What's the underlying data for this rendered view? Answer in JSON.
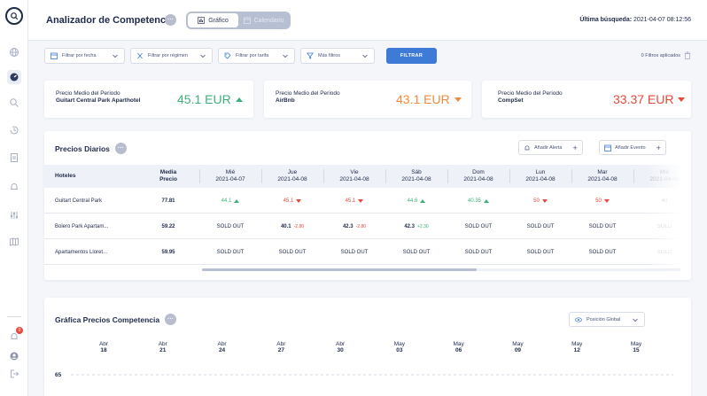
{
  "sidebar": {
    "items": [
      {
        "icon": "globe-icon"
      },
      {
        "icon": "dashboard-gauge-icon",
        "active": true
      },
      {
        "icon": "search-icon"
      },
      {
        "icon": "history-icon"
      },
      {
        "icon": "document-icon"
      },
      {
        "icon": "bell-icon"
      },
      {
        "icon": "sliders-icon"
      },
      {
        "icon": "map-icon"
      }
    ],
    "bottom": [
      {
        "icon": "notification-icon",
        "badge": "0"
      },
      {
        "icon": "user-icon"
      },
      {
        "icon": "logout-icon"
      }
    ]
  },
  "header": {
    "title": "Analizador de Competencia",
    "view_graph": "Gráfico",
    "view_calendar": "Calendario",
    "last_search_label": "Última búsqueda:",
    "last_search_value": "2021-04-07 08:12:56"
  },
  "filters": {
    "date": "Filtrar por fecha",
    "regime": "Filtrar por régimen",
    "rate": "Filtrar por tarifa",
    "more": "Más filtros",
    "apply": "FILTRAR",
    "applied": "0 Filtros aplicados"
  },
  "cards": [
    {
      "label": "Precio Medio del Periodo",
      "sub": "Guitart Central Park Aparthotel",
      "value": "45.1 EUR",
      "trend": "up",
      "color": "#3bb27a"
    },
    {
      "label": "Precio Medio del Periodo",
      "sub": "AirBnb",
      "value": "43.1 EUR",
      "trend": "down",
      "color": "#f08a3c"
    },
    {
      "label": "Precio Medio del Periodo",
      "sub": "CompSet",
      "value": "33.37 EUR",
      "trend": "down",
      "color": "#e64a3b"
    }
  ],
  "daily": {
    "title": "Precios Diarios",
    "add_alert": "Añadir Alerta",
    "add_event": "Añadir Evento",
    "col_hotels": "Hoteles",
    "col_avg_1": "Media",
    "col_avg_2": "Precio",
    "days": [
      {
        "day": "Mié",
        "date": "2021-04-07"
      },
      {
        "day": "Jue",
        "date": "2021-04-08"
      },
      {
        "day": "Vie",
        "date": "2021-04-08"
      },
      {
        "day": "Sáb",
        "date": "2021-04-08"
      },
      {
        "day": "Dom",
        "date": "2021-04-08"
      },
      {
        "day": "Lun",
        "date": "2021-04-08"
      },
      {
        "day": "Mar",
        "date": "2021-04-08"
      },
      {
        "day": "Mié",
        "date": "2021-04-08"
      }
    ],
    "rows": [
      {
        "name": "Guitart Central Park",
        "avg": "77.81",
        "cells": [
          {
            "v": "44.1",
            "t": "up",
            "c": "#3bb27a"
          },
          {
            "v": "45.1",
            "t": "down",
            "c": "#e64a3b"
          },
          {
            "v": "45.1",
            "t": "down",
            "c": "#e64a3b"
          },
          {
            "v": "44.6",
            "t": "up",
            "c": "#3bb27a"
          },
          {
            "v": "40.35",
            "t": "up",
            "c": "#3bb27a"
          },
          {
            "v": "50",
            "t": "down",
            "c": "#e64a3b"
          },
          {
            "v": "50",
            "t": "down",
            "c": "#e64a3b"
          },
          {
            "v": "40",
            "t": "",
            "c": "#1e2a4a"
          }
        ]
      },
      {
        "name": "Bolero Park Apartam...",
        "avg": "59.22",
        "cells": [
          {
            "v": "SOLD OUT"
          },
          {
            "v": "40.1",
            "d": "-2.80",
            "dc": "#e64a3b"
          },
          {
            "v": "42.3",
            "d": "-2.80",
            "dc": "#e64a3b"
          },
          {
            "v": "42.3",
            "d": "+2.30",
            "dc": "#3bb27a"
          },
          {
            "v": "SOLD OUT"
          },
          {
            "v": "SOLD OUT"
          },
          {
            "v": "SOLD OUT"
          },
          {
            "v": "SOLD"
          }
        ]
      },
      {
        "name": "Apartamentos Lloret...",
        "avg": "59.95",
        "cells": [
          {
            "v": "SOLD OUT"
          },
          {
            "v": "SOLD OUT"
          },
          {
            "v": "SOLD OUT"
          },
          {
            "v": "SOLD OUT"
          },
          {
            "v": "SOLD OUT"
          },
          {
            "v": "SOLD OUT"
          },
          {
            "v": "SOLD OUT"
          },
          {
            "v": "SOLD"
          }
        ]
      }
    ]
  },
  "chart": {
    "title": "Gráfica Precios Competencia",
    "select_label": "Posición Global"
  },
  "chart_data": {
    "type": "line",
    "title": "Gráfica Precios Competencia",
    "x_ticks": [
      {
        "month": "Abr",
        "day": "18"
      },
      {
        "month": "Abr",
        "day": "21"
      },
      {
        "month": "Abr",
        "day": "24"
      },
      {
        "month": "Abr",
        "day": "27"
      },
      {
        "month": "Abr",
        "day": "30"
      },
      {
        "month": "May",
        "day": "03"
      },
      {
        "month": "May",
        "day": "06"
      },
      {
        "month": "May",
        "day": "09"
      },
      {
        "month": "May",
        "day": "12"
      },
      {
        "month": "May",
        "day": "15"
      }
    ],
    "y_ticks": [
      65
    ],
    "grid": true,
    "series": []
  }
}
